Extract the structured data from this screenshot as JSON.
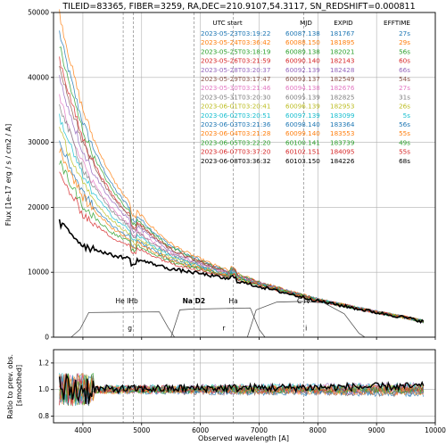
{
  "title": "TILEID=83365, FIBER=3259, RA,DEC=210.9107,54.3117, SN_REDSHIFT=0.000811",
  "table": {
    "headers": [
      "UTC start",
      "MJD",
      "EXPID",
      "EFFTIME"
    ],
    "rows": [
      {
        "utc": "2023-05-23T03:19:22",
        "mjd": "60087.138",
        "expid": "181767",
        "efftime": "27s",
        "color": "#1f77b4"
      },
      {
        "utc": "2023-05-24T03:36:42",
        "mjd": "60088.150",
        "expid": "181895",
        "efftime": "29s",
        "color": "#ff7f0e"
      },
      {
        "utc": "2023-05-25T03:18:19",
        "mjd": "60089.138",
        "expid": "182021",
        "efftime": "56s",
        "color": "#2ca02c"
      },
      {
        "utc": "2023-05-26T03:21:59",
        "mjd": "60090.140",
        "expid": "182143",
        "efftime": "60s",
        "color": "#d62728"
      },
      {
        "utc": "2023-05-28T03:20:37",
        "mjd": "60092.139",
        "expid": "182428",
        "efftime": "66s",
        "color": "#9467bd"
      },
      {
        "utc": "2023-05-29T03:17:47",
        "mjd": "60093.137",
        "expid": "182549",
        "efftime": "54s",
        "color": "#8c564b"
      },
      {
        "utc": "2023-05-30T03:21:46",
        "mjd": "60094.138",
        "expid": "182676",
        "efftime": "27s",
        "color": "#e377c2"
      },
      {
        "utc": "2023-05-31T03:20:30",
        "mjd": "60095.139",
        "expid": "182825",
        "efftime": "31s",
        "color": "#7f7f7f"
      },
      {
        "utc": "2023-06-01T03:20:41",
        "mjd": "60096.139",
        "expid": "182953",
        "efftime": "26s",
        "color": "#bcbd22"
      },
      {
        "utc": "2023-06-02T03:20:51",
        "mjd": "60097.139",
        "expid": "183099",
        "efftime": "5s",
        "color": "#17becf"
      },
      {
        "utc": "2023-06-03T03:21:36",
        "mjd": "60098.140",
        "expid": "183364",
        "efftime": "56s",
        "color": "#1f77b4"
      },
      {
        "utc": "2023-06-04T03:21:28",
        "mjd": "60099.140",
        "expid": "183553",
        "efftime": "55s",
        "color": "#ff7f0e"
      },
      {
        "utc": "2023-06-05T03:22:20",
        "mjd": "60100.141",
        "expid": "183739",
        "efftime": "49s",
        "color": "#2ca02c"
      },
      {
        "utc": "2023-06-07T03:37:20",
        "mjd": "60102.151",
        "expid": "184095",
        "efftime": "55s",
        "color": "#d62728"
      },
      {
        "utc": "2023-06-08T03:36:32",
        "mjd": "60103.150",
        "expid": "184226",
        "efftime": "68s",
        "color": "#000000"
      }
    ]
  },
  "chart_data": [
    {
      "type": "line",
      "ylabel": "Flux [1e-17 erg / s / cm2 / A]",
      "xlim": [
        3500,
        10000
      ],
      "ylim": [
        0,
        50000
      ],
      "xticks": [
        4000,
        5000,
        6000,
        7000,
        8000,
        9000,
        10000
      ],
      "yticks": [
        0,
        10000,
        20000,
        30000,
        40000,
        50000
      ],
      "grid": true,
      "emission_lines": [
        {
          "label": "He II",
          "x": 4686
        },
        {
          "label": "Hb",
          "x": 4861
        },
        {
          "label": "Na D2",
          "x": 5890
        },
        {
          "label": "Ha",
          "x": 6563
        },
        {
          "label": "C IV",
          "x": 7760
        }
      ],
      "filters": [
        {
          "label": "g",
          "x": 4800
        },
        {
          "label": "r",
          "x": 6400
        },
        {
          "label": "i",
          "x": 7800
        }
      ],
      "series_spectrum_points": [
        {
          "x": 3600,
          "y": 17500
        },
        {
          "x": 3800,
          "y": 16000
        },
        {
          "x": 4000,
          "y": 14200
        },
        {
          "x": 4500,
          "y": 12600
        },
        {
          "x": 5000,
          "y": 11800
        },
        {
          "x": 5500,
          "y": 10500
        },
        {
          "x": 6000,
          "y": 9800
        },
        {
          "x": 6500,
          "y": 8900
        },
        {
          "x": 7000,
          "y": 7800
        },
        {
          "x": 7500,
          "y": 6700
        },
        {
          "x": 8000,
          "y": 5600
        },
        {
          "x": 8500,
          "y": 4700
        },
        {
          "x": 9000,
          "y": 3800
        },
        {
          "x": 9500,
          "y": 3000
        },
        {
          "x": 9800,
          "y": 2400
        }
      ],
      "series_peak_flux_at_3600": [
        47000,
        50000,
        45000,
        43000,
        40000,
        42000,
        37000,
        36000,
        32000,
        34000,
        30000,
        29000,
        27000,
        25000,
        17500
      ]
    },
    {
      "type": "line",
      "xlabel": "Observed wavelength [A]",
      "ylabel": "Ratio to prev. obs. [smoothed]",
      "xlim": [
        3500,
        10000
      ],
      "ylim": [
        0.75,
        1.3
      ],
      "xticks": [
        4000,
        5000,
        6000,
        7000,
        8000,
        9000,
        10000
      ],
      "yticks": [
        0.8,
        1.0,
        1.2
      ],
      "grid": true
    }
  ]
}
